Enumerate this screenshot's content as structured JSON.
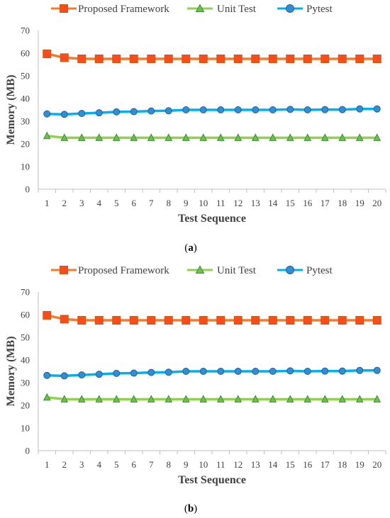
{
  "chart_data": [
    {
      "type": "line",
      "caption": "(a)",
      "caption_letter": "a",
      "xlabel": "Test Sequence",
      "ylabel": "Memory (MB)",
      "ylim": [
        0,
        70
      ],
      "yticks": [
        0,
        10,
        20,
        30,
        40,
        50,
        60,
        70
      ],
      "x": [
        1,
        2,
        3,
        4,
        5,
        6,
        7,
        8,
        9,
        10,
        11,
        12,
        13,
        14,
        15,
        16,
        17,
        18,
        19,
        20
      ],
      "grid": false,
      "legend": "top",
      "series": [
        {
          "name": "Proposed Framework",
          "color": "#ED7D31",
          "marker": "square",
          "marker_fill": "#FF4A1A",
          "values": [
            59.7,
            58.0,
            57.5,
            57.5,
            57.5,
            57.5,
            57.5,
            57.5,
            57.5,
            57.5,
            57.5,
            57.5,
            57.5,
            57.5,
            57.5,
            57.5,
            57.5,
            57.5,
            57.5,
            57.5
          ]
        },
        {
          "name": "Unit Test",
          "color": "#92D050",
          "marker": "triangle",
          "marker_fill": "#6CC24A",
          "values": [
            23.5,
            22.7,
            22.7,
            22.7,
            22.7,
            22.7,
            22.7,
            22.7,
            22.7,
            22.7,
            22.7,
            22.7,
            22.7,
            22.7,
            22.7,
            22.7,
            22.7,
            22.7,
            22.7,
            22.7
          ]
        },
        {
          "name": "Pytest",
          "color": "#00B0F0",
          "marker": "circle",
          "marker_fill": "#2E8FD6",
          "values": [
            33.2,
            33.0,
            33.4,
            33.7,
            34.1,
            34.2,
            34.5,
            34.6,
            35.0,
            35.0,
            35.0,
            35.0,
            35.0,
            35.0,
            35.2,
            35.0,
            35.1,
            35.1,
            35.4,
            35.4
          ]
        }
      ]
    },
    {
      "type": "line",
      "caption": "(b)",
      "caption_letter": "b",
      "xlabel": "Test Sequence",
      "ylabel": "Memory (MB)",
      "ylim": [
        0,
        70
      ],
      "yticks": [
        0,
        10,
        20,
        30,
        40,
        50,
        60,
        70
      ],
      "x": [
        1,
        2,
        3,
        4,
        5,
        6,
        7,
        8,
        9,
        10,
        11,
        12,
        13,
        14,
        15,
        16,
        17,
        18,
        19,
        20
      ],
      "grid": false,
      "legend": "top",
      "series": [
        {
          "name": "Proposed Framework",
          "color": "#ED7D31",
          "marker": "square",
          "marker_fill": "#FF4A1A",
          "values": [
            59.7,
            58.0,
            57.5,
            57.5,
            57.5,
            57.5,
            57.5,
            57.5,
            57.5,
            57.5,
            57.5,
            57.5,
            57.5,
            57.5,
            57.5,
            57.5,
            57.5,
            57.5,
            57.5,
            57.5
          ]
        },
        {
          "name": "Unit Test",
          "color": "#92D050",
          "marker": "triangle",
          "marker_fill": "#6CC24A",
          "values": [
            23.5,
            22.7,
            22.7,
            22.7,
            22.7,
            22.7,
            22.7,
            22.7,
            22.7,
            22.7,
            22.7,
            22.7,
            22.7,
            22.7,
            22.7,
            22.7,
            22.7,
            22.7,
            22.7,
            22.7
          ]
        },
        {
          "name": "Pytest",
          "color": "#00B0F0",
          "marker": "circle",
          "marker_fill": "#2E8FD6",
          "values": [
            33.2,
            33.0,
            33.4,
            33.7,
            34.1,
            34.2,
            34.5,
            34.6,
            35.0,
            35.0,
            35.0,
            35.0,
            35.0,
            35.0,
            35.2,
            35.0,
            35.1,
            35.1,
            35.4,
            35.4
          ]
        }
      ]
    }
  ]
}
